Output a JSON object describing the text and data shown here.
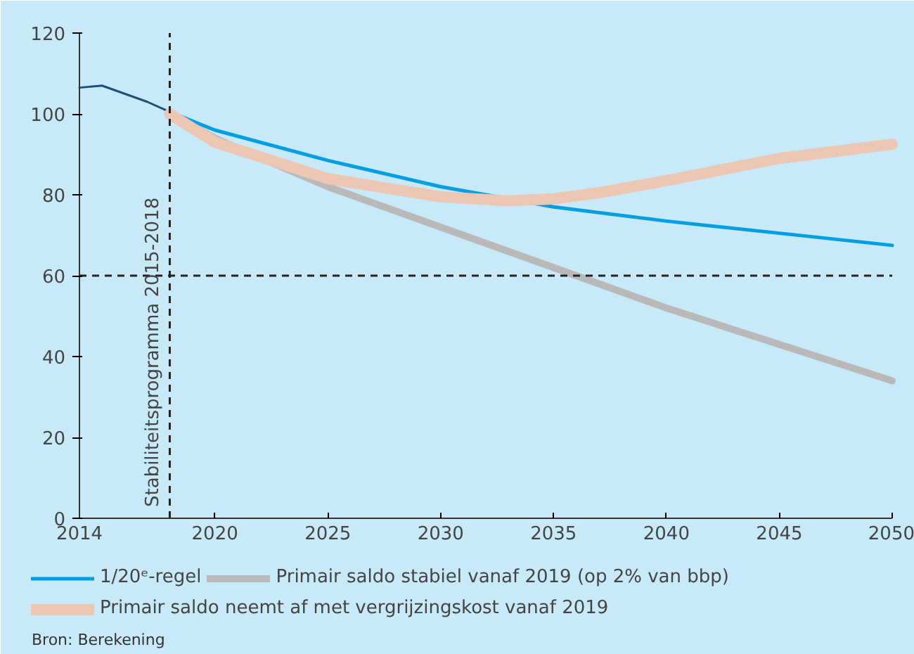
{
  "chart_data": {
    "type": "line",
    "x": [
      2014,
      2015,
      2016,
      2017,
      2018
    ],
    "series": [
      {
        "color": "#1f4e79",
        "values": [
          106.5,
          107,
          105,
          103,
          100.5
        ]
      },
      {
        "name": "1/20ᵉ-regel",
        "color": "#009fe3",
        "x": [
          2018,
          2020,
          2025,
          2030,
          2035,
          2040,
          2045,
          2050
        ],
        "values": [
          100.5,
          96,
          88.5,
          82,
          77,
          73.5,
          70.5,
          67.5
        ]
      },
      {
        "name": "Primair saldo stabiel vanaf 2019 (op 2% van bbp)",
        "color": "#b9b9b9",
        "x": [
          2018,
          2020,
          2025,
          2030,
          2035,
          2040,
          2045,
          2050
        ],
        "values": [
          100,
          94,
          82,
          72,
          62,
          52,
          43,
          34
        ]
      },
      {
        "name": "Primair saldo neemt af met vergrijzingskost vanaf 2019",
        "color": "#ecc7b4",
        "x": [
          2018,
          2020,
          2025,
          2030,
          2033,
          2035,
          2037,
          2040,
          2045,
          2050
        ],
        "values": [
          100,
          93,
          84,
          79.5,
          78.5,
          79,
          80.5,
          83.5,
          89,
          92.5
        ]
      }
    ],
    "xlim": [
      2014,
      2050
    ],
    "xticks": [
      2014,
      2020,
      2025,
      2030,
      2035,
      2040,
      2045,
      2050
    ],
    "ylim": [
      0,
      120
    ],
    "yticks": [
      0,
      20,
      40,
      60,
      80,
      100,
      120
    ],
    "grid": false,
    "legend": "bottom",
    "line_style": "solid",
    "ref_lines": [
      {
        "axis": "x",
        "value": 2018,
        "label": "Stabiliteitsprogramma 2015-2018",
        "line_style": "dashed"
      },
      {
        "axis": "y",
        "value": 60,
        "label": null,
        "line_style": "dashed"
      }
    ],
    "annotations": [
      "Bron: Berekening"
    ]
  }
}
